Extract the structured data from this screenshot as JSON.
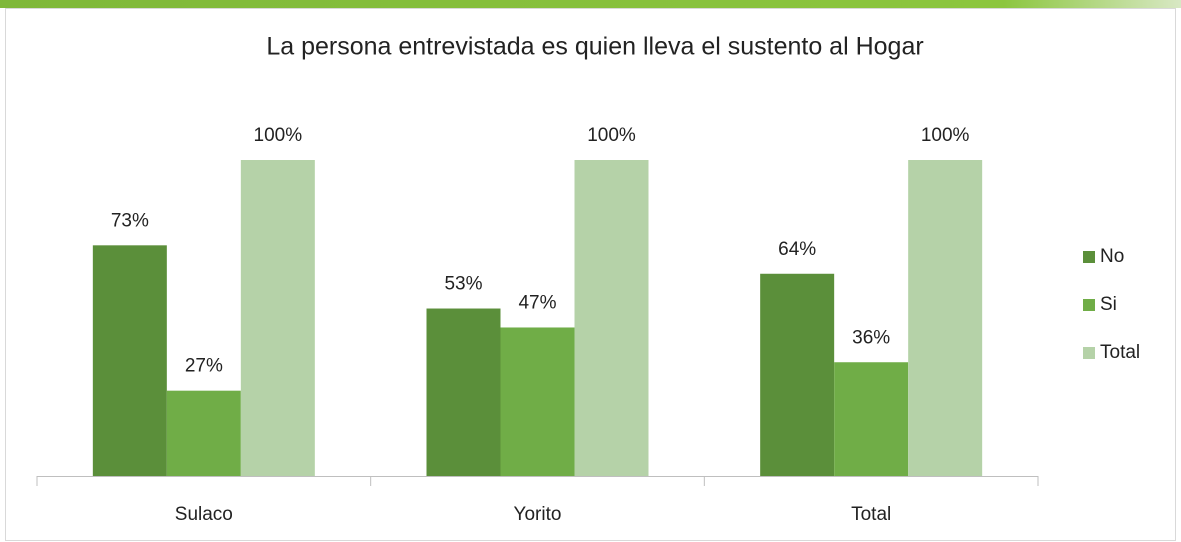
{
  "chart_data": {
    "type": "bar",
    "title": "La persona entrevistada es quien lleva el sustento al Hogar",
    "categories": [
      "Sulaco",
      "Yorito",
      "Total"
    ],
    "series": [
      {
        "name": "No",
        "color": "#5b8f3a",
        "values": [
          73,
          53,
          64
        ],
        "value_labels": [
          "73%",
          "53%",
          "64%"
        ]
      },
      {
        "name": "Si",
        "color": "#70ad47",
        "values": [
          27,
          47,
          36
        ],
        "value_labels": [
          "27%",
          "47%",
          "36%"
        ]
      },
      {
        "name": "Total",
        "color": "#b5d2a8",
        "values": [
          100,
          100,
          100
        ],
        "value_labels": [
          "100%",
          "100%",
          "100%"
        ]
      }
    ],
    "ylim": [
      0,
      100
    ],
    "legend": "right"
  }
}
